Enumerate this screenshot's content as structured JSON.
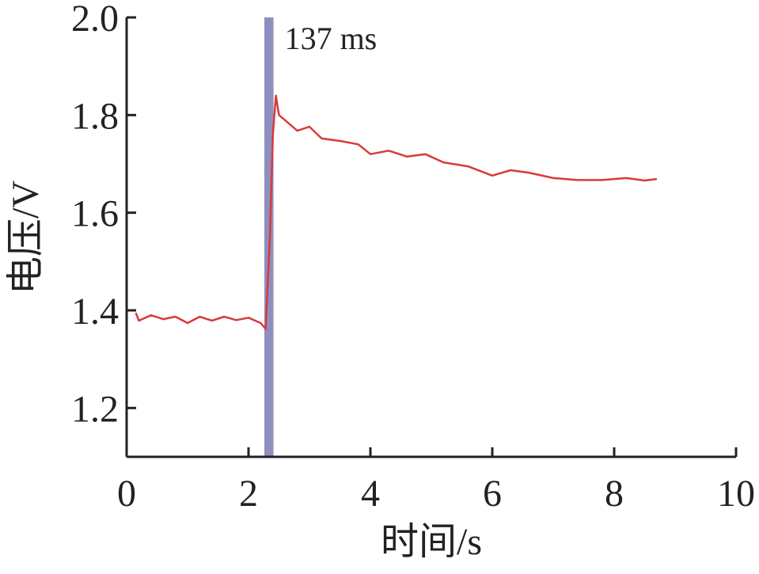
{
  "chart_data": {
    "type": "line",
    "x_label": "时间/s",
    "y_label": "电压/V",
    "annotation": "137 ms",
    "highlight_span": [
      2.26,
      2.41
    ],
    "highlight_color": "#8e8fbf",
    "xlim": [
      0,
      10
    ],
    "ylim": [
      1.1,
      2.0
    ],
    "xticks": [
      0,
      2,
      4,
      6,
      8,
      10
    ],
    "yticks": [
      1.2,
      1.4,
      1.6,
      1.8,
      {
        "value": 2.0,
        "label": "2.0"
      }
    ],
    "series": [
      {
        "color": "#d93a3a",
        "x": [
          0.15,
          0.2,
          0.4,
          0.6,
          0.8,
          1.0,
          1.2,
          1.4,
          1.6,
          1.8,
          2.0,
          2.2,
          2.28,
          2.35,
          2.4,
          2.45,
          2.5,
          2.8,
          3.0,
          3.2,
          3.5,
          3.8,
          4.0,
          4.3,
          4.6,
          4.9,
          5.2,
          5.6,
          6.0,
          6.3,
          6.6,
          7.0,
          7.4,
          7.8,
          8.2,
          8.5,
          8.7
        ],
        "values": [
          1.395,
          1.379,
          1.39,
          1.382,
          1.387,
          1.374,
          1.387,
          1.379,
          1.387,
          1.38,
          1.385,
          1.374,
          1.362,
          1.549,
          1.76,
          1.84,
          1.8,
          1.768,
          1.776,
          1.752,
          1.747,
          1.74,
          1.72,
          1.727,
          1.715,
          1.72,
          1.703,
          1.695,
          1.676,
          1.687,
          1.682,
          1.671,
          1.667,
          1.667,
          1.671,
          1.666,
          1.669
        ]
      }
    ]
  }
}
